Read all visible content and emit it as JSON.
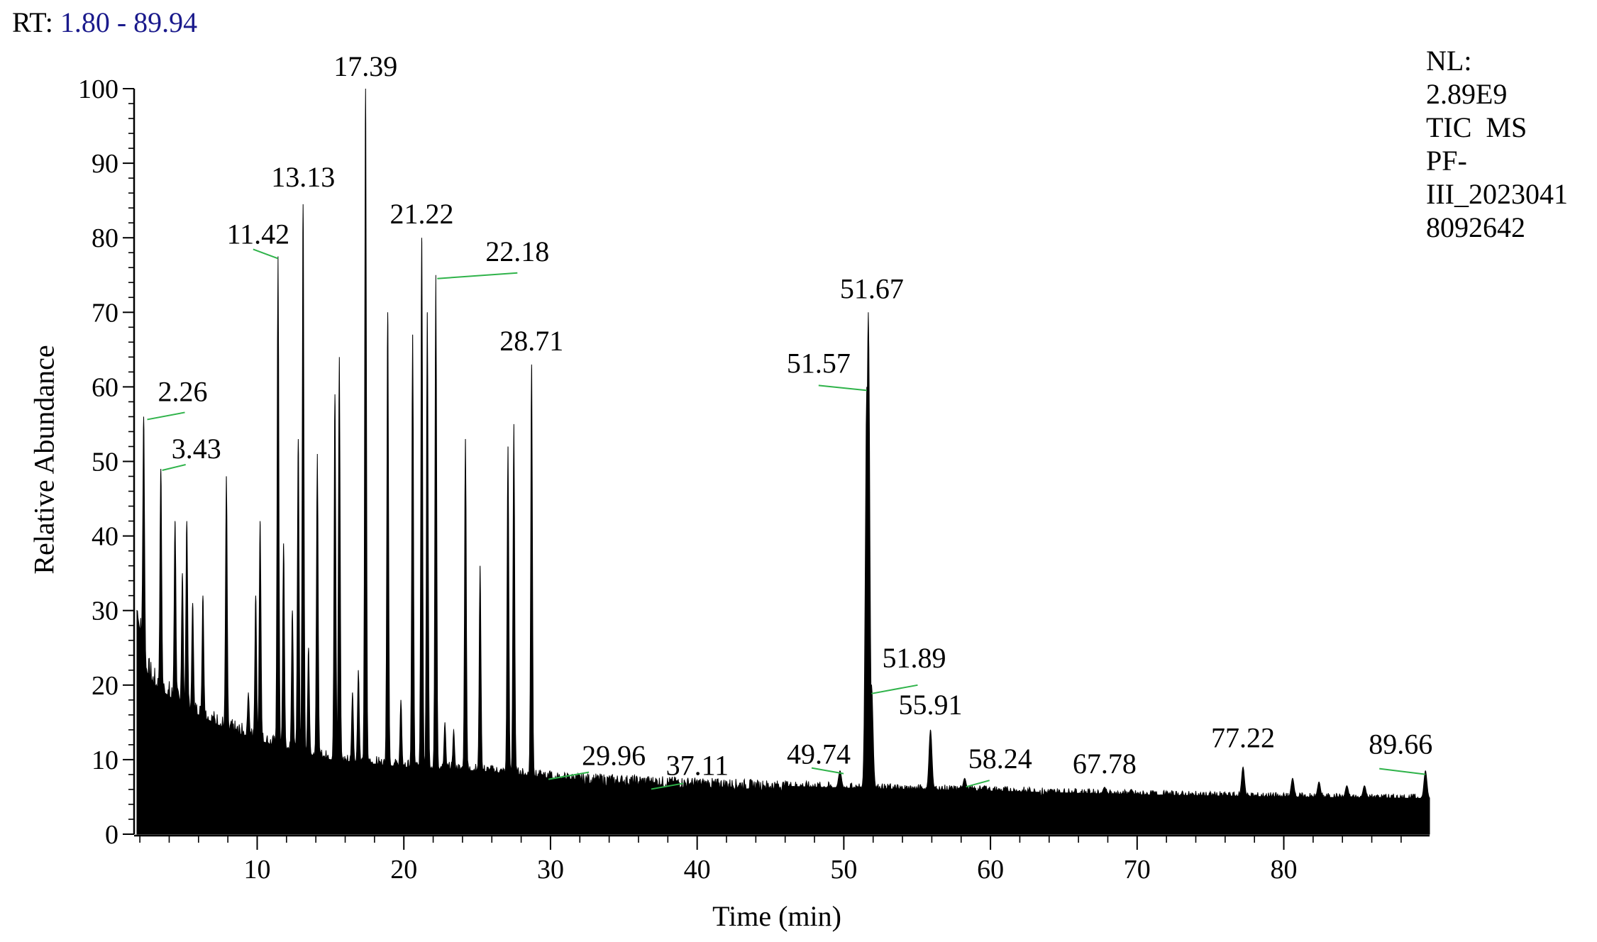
{
  "header": {
    "rt_label": "RT:",
    "rt_range": "1.80 - 89.94"
  },
  "normalization": {
    "lines": [
      "NL:",
      "2.89E9",
      "TIC  MS",
      "PF-",
      "III_2023041",
      "8092642"
    ]
  },
  "chart_data": {
    "type": "line",
    "title": "",
    "xlabel": "Time (min)",
    "ylabel": "Relative Abundance",
    "xlim": [
      1.8,
      89.94
    ],
    "ylim": [
      0,
      100
    ],
    "x_ticks": [
      10,
      20,
      30,
      40,
      50,
      60,
      70,
      80
    ],
    "y_ticks": [
      0,
      10,
      20,
      30,
      40,
      50,
      60,
      70,
      80,
      90,
      100
    ],
    "grid": false,
    "fill": "#000000",
    "baseline": [
      [
        1.8,
        30
      ],
      [
        2.4,
        22
      ],
      [
        3.0,
        20
      ],
      [
        5.0,
        17
      ],
      [
        8.0,
        14
      ],
      [
        11.0,
        12
      ],
      [
        15.0,
        10
      ],
      [
        20.0,
        9
      ],
      [
        25.0,
        8.5
      ],
      [
        28.0,
        8
      ],
      [
        30.0,
        7.5
      ],
      [
        40.0,
        6.8
      ],
      [
        50.0,
        6.2
      ],
      [
        60.0,
        5.8
      ],
      [
        70.0,
        5.3
      ],
      [
        80.0,
        5.0
      ],
      [
        89.94,
        4.8
      ]
    ],
    "peaks": [
      {
        "rt": 2.26,
        "height": 56,
        "label": "2.26"
      },
      {
        "rt": 3.43,
        "height": 49,
        "label": "3.43"
      },
      {
        "rt": 4.4,
        "height": 42
      },
      {
        "rt": 4.9,
        "height": 35
      },
      {
        "rt": 5.2,
        "height": 42
      },
      {
        "rt": 5.6,
        "height": 31
      },
      {
        "rt": 6.3,
        "height": 32
      },
      {
        "rt": 7.9,
        "height": 48
      },
      {
        "rt": 9.4,
        "height": 19
      },
      {
        "rt": 9.9,
        "height": 32
      },
      {
        "rt": 10.2,
        "height": 42
      },
      {
        "rt": 11.42,
        "height": 77.5,
        "label": "11.42"
      },
      {
        "rt": 11.8,
        "height": 39
      },
      {
        "rt": 12.4,
        "height": 30
      },
      {
        "rt": 12.8,
        "height": 53
      },
      {
        "rt": 13.13,
        "height": 84.5,
        "label": "13.13"
      },
      {
        "rt": 13.5,
        "height": 25
      },
      {
        "rt": 14.1,
        "height": 51
      },
      {
        "rt": 15.3,
        "height": 59
      },
      {
        "rt": 15.6,
        "height": 64
      },
      {
        "rt": 16.5,
        "height": 19
      },
      {
        "rt": 16.9,
        "height": 22
      },
      {
        "rt": 17.39,
        "height": 100,
        "label": "17.39"
      },
      {
        "rt": 18.9,
        "height": 70
      },
      {
        "rt": 19.8,
        "height": 18
      },
      {
        "rt": 20.6,
        "height": 67
      },
      {
        "rt": 21.22,
        "height": 80,
        "label": "21.22"
      },
      {
        "rt": 21.6,
        "height": 70
      },
      {
        "rt": 22.18,
        "height": 75,
        "label": "22.18"
      },
      {
        "rt": 22.8,
        "height": 15
      },
      {
        "rt": 23.4,
        "height": 14
      },
      {
        "rt": 24.2,
        "height": 53
      },
      {
        "rt": 25.2,
        "height": 36
      },
      {
        "rt": 27.1,
        "height": 52
      },
      {
        "rt": 27.5,
        "height": 55
      },
      {
        "rt": 28.71,
        "height": 63,
        "label": "28.71"
      },
      {
        "rt": 29.96,
        "height": 8.5,
        "label": "29.96"
      },
      {
        "rt": 37.11,
        "height": 7,
        "label": "37.11"
      },
      {
        "rt": 49.74,
        "height": 8.5,
        "label": "49.74"
      },
      {
        "rt": 51.57,
        "height": 60,
        "label": "51.57"
      },
      {
        "rt": 51.67,
        "height": 70,
        "label": "51.67"
      },
      {
        "rt": 51.89,
        "height": 20,
        "label": "51.89"
      },
      {
        "rt": 55.91,
        "height": 14,
        "label": "55.91"
      },
      {
        "rt": 58.24,
        "height": 7.5,
        "label": "58.24"
      },
      {
        "rt": 59.6,
        "height": 6.5
      },
      {
        "rt": 67.78,
        "height": 6.3,
        "label": "67.78"
      },
      {
        "rt": 69.6,
        "height": 6
      },
      {
        "rt": 77.22,
        "height": 9,
        "label": "77.22"
      },
      {
        "rt": 80.6,
        "height": 7.5
      },
      {
        "rt": 82.4,
        "height": 7
      },
      {
        "rt": 84.3,
        "height": 6.5
      },
      {
        "rt": 85.5,
        "height": 6.5
      },
      {
        "rt": 89.66,
        "height": 8.5,
        "label": "89.66"
      }
    ]
  },
  "colors": {
    "trace": "#000000",
    "leader_line": "#2fb34a",
    "rt_range_text": "#1a1a8c"
  }
}
